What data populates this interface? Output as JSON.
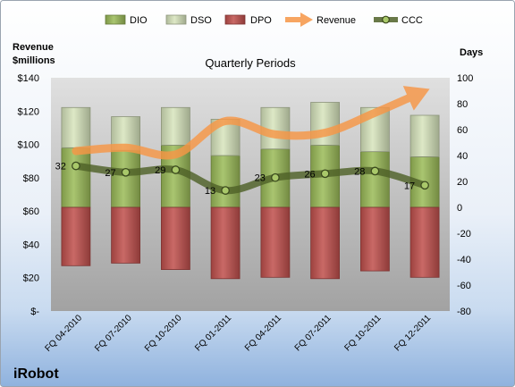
{
  "company": "iRobot",
  "chart_data": {
    "type": "bar",
    "title": "Quarterly Periods",
    "categories": [
      "FQ 04-2010",
      "FQ 07-2010",
      "FQ 10-2010",
      "FQ 01-2011",
      "FQ 04-2011",
      "FQ 07-2011",
      "FQ 10-2011",
      "FQ 12-2011"
    ],
    "y_left": {
      "label": [
        "Revenue",
        "$millions"
      ],
      "range": [
        0,
        140
      ],
      "ticks": [
        140,
        120,
        100,
        80,
        60,
        40,
        20,
        0
      ],
      "tick_labels": [
        "$140",
        "$120",
        "$100",
        "$80",
        "$60",
        "$40",
        "$20",
        "$-"
      ]
    },
    "y_right": {
      "label": "Days",
      "range": [
        -80,
        100
      ],
      "ticks": [
        100,
        80,
        60,
        40,
        20,
        0,
        -20,
        -40,
        -60,
        -80
      ],
      "tick_labels": [
        "100",
        "80",
        "60",
        "40",
        "20",
        "0",
        "-20",
        "-40",
        "-60",
        "-80"
      ]
    },
    "series": [
      {
        "name": "DIO",
        "type": "bar",
        "stacked": true,
        "axis": "right",
        "color": "#9bbb59",
        "values": [
          46,
          44,
          48,
          40,
          45,
          48,
          43,
          39
        ]
      },
      {
        "name": "DSO",
        "type": "bar",
        "stacked": true,
        "axis": "right",
        "color": "#d7e4bd",
        "values": [
          31,
          26,
          29,
          28,
          32,
          33,
          34,
          32
        ]
      },
      {
        "name": "DPO",
        "type": "bar",
        "stacked": true,
        "axis": "right",
        "color": "#c0504d",
        "values": [
          -45,
          -43,
          -48,
          -55,
          -54,
          -55,
          -49,
          -54
        ]
      },
      {
        "name": "Revenue",
        "type": "line",
        "axis": "left",
        "color": "#f79646",
        "smooth": true,
        "arrow_end": true,
        "values": [
          96,
          98,
          94,
          114,
          106,
          107,
          119,
          132
        ]
      },
      {
        "name": "CCC",
        "type": "line",
        "axis": "right",
        "color": "#4f6228",
        "marker_color": "#a9c86a",
        "smooth": true,
        "markers": true,
        "data_labels": true,
        "values": [
          32,
          27,
          29,
          13,
          23,
          26,
          28,
          17
        ]
      }
    ],
    "legend": "top",
    "grid": false
  }
}
